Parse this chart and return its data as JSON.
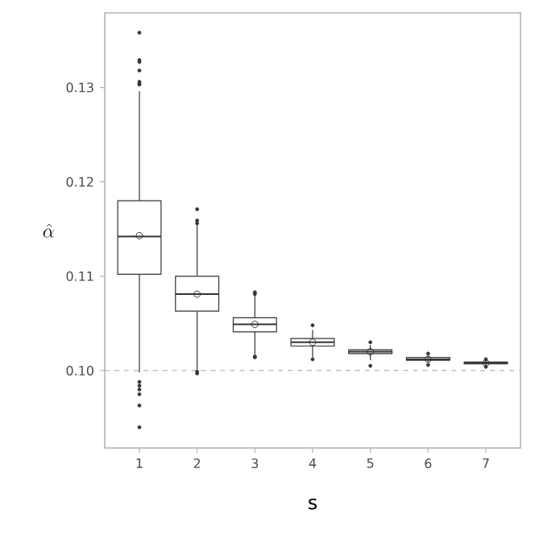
{
  "chart_data": {
    "type": "box",
    "xlabel": "s",
    "ylabel": "\\hat{\\alpha}",
    "categories": [
      "1",
      "2",
      "3",
      "4",
      "5",
      "6",
      "7"
    ],
    "boxes": [
      {
        "low": 0.0998,
        "q1": 0.1102,
        "median": 0.1142,
        "q3": 0.118,
        "high": 0.1296,
        "mean": 0.1143,
        "outliers": [
          0.1358,
          0.1329,
          0.1327,
          0.1318,
          0.1306,
          0.1304,
          0.1303,
          0.0988,
          0.0984,
          0.098,
          0.0975,
          0.0963,
          0.094
        ]
      },
      {
        "low": 0.1001,
        "q1": 0.1063,
        "median": 0.1081,
        "q3": 0.11,
        "high": 0.1154,
        "mean": 0.1081,
        "outliers": [
          0.1171,
          0.1159,
          0.1156,
          0.0999,
          0.0997
        ]
      },
      {
        "low": 0.1017,
        "q1": 0.1041,
        "median": 0.1049,
        "q3": 0.1056,
        "high": 0.108,
        "mean": 0.1049,
        "outliers": [
          0.1083,
          0.1081,
          0.1015,
          0.1014
        ]
      },
      {
        "low": 0.1014,
        "q1": 0.1026,
        "median": 0.103,
        "q3": 0.1034,
        "high": 0.1043,
        "mean": 0.103,
        "outliers": [
          0.1048,
          0.1012
        ]
      },
      {
        "low": 0.1011,
        "q1": 0.1018,
        "median": 0.102,
        "q3": 0.1022,
        "high": 0.1027,
        "mean": 0.102,
        "outliers": [
          0.103,
          0.1005
        ]
      },
      {
        "low": 0.1009,
        "q1": 0.1011,
        "median": 0.1012,
        "q3": 0.1014,
        "high": 0.1016,
        "mean": 0.1012,
        "outliers": [
          0.1018,
          0.1006
        ]
      },
      {
        "low": 0.1005,
        "q1": 0.1007,
        "median": 0.1008,
        "q3": 0.1009,
        "high": 0.1011,
        "mean": 0.1008,
        "outliers": [
          0.1012,
          0.1004
        ]
      }
    ],
    "color": "#333333",
    "ylim": [
      0.0918,
      0.1379
    ],
    "yticks": [
      {
        "value": 0.1,
        "label": "0.10"
      },
      0.11,
      0.12,
      0.13
    ],
    "ref_lines": [
      {
        "axis": "y",
        "value": 0.1,
        "color": "#b3b3b3",
        "line_style": "dashed"
      }
    ]
  }
}
